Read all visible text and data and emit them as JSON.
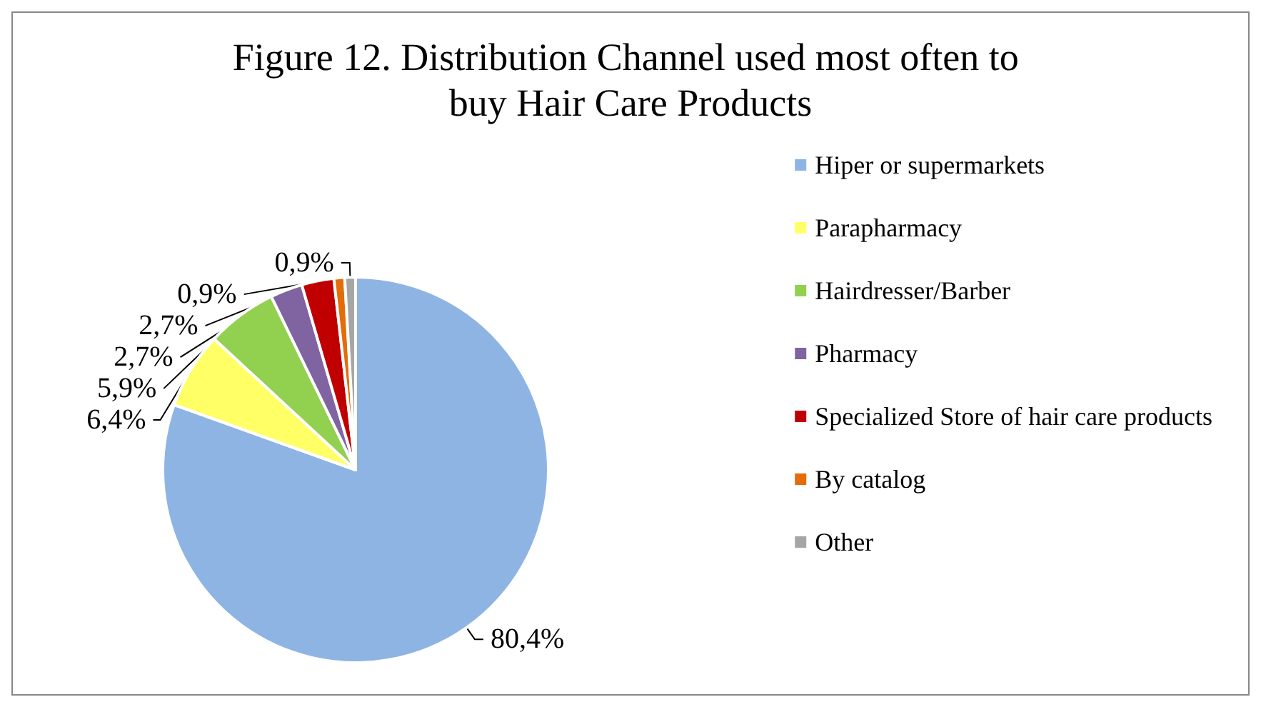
{
  "chart_data": {
    "type": "pie",
    "title": "Figure 12. Distribution Channel used most often to buy Hair Care Products",
    "categories": [
      "Hiper or supermarkets",
      "Parapharmacy",
      "Hairdresser/Barber",
      "Pharmacy",
      "Specialized Store of hair care products",
      "By catalog",
      "Other"
    ],
    "values": [
      80.4,
      6.4,
      5.9,
      2.7,
      2.7,
      0.9,
      0.9
    ],
    "value_labels": [
      "80,4%",
      "6,4%",
      "5,9%",
      "2,7%",
      "2,7%",
      "0,9%",
      "0,9%"
    ],
    "colors": [
      "#8eb4e3",
      "#ffff66",
      "#92d050",
      "#8064a2",
      "#c00000",
      "#e46c0a",
      "#a6a6a6"
    ],
    "legend": "right"
  }
}
